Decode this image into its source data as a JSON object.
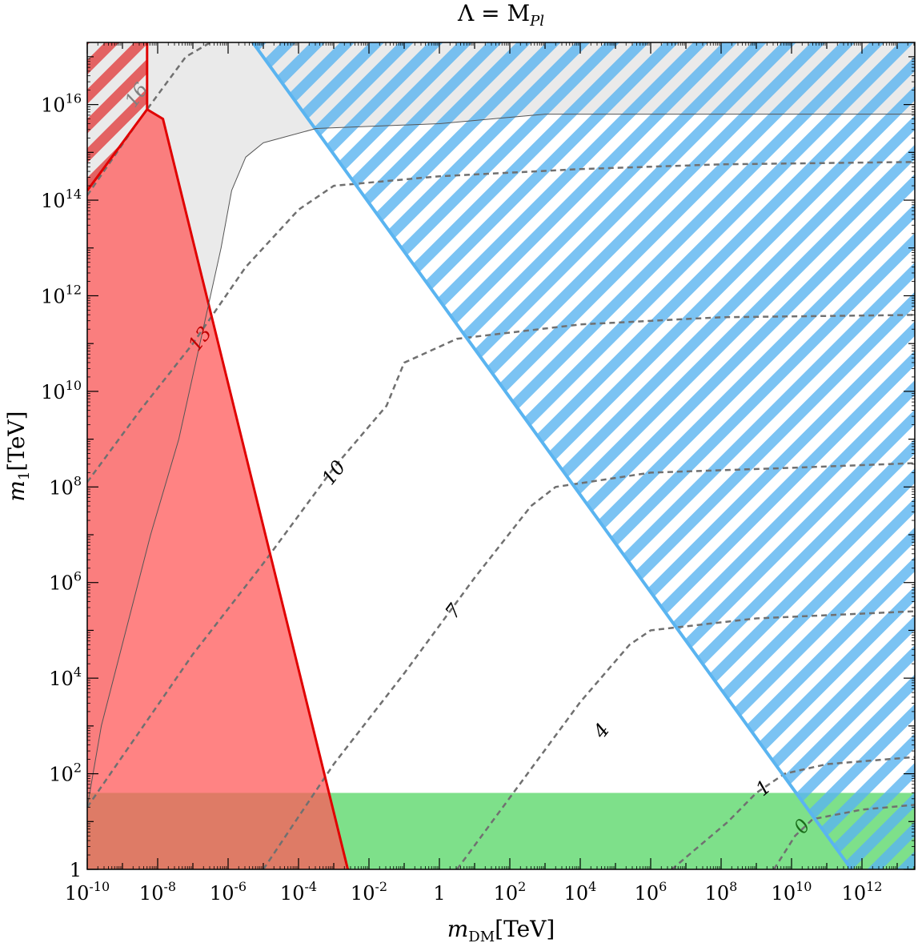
{
  "chart_data": {
    "type": "contour",
    "title": "Λ = M_Pl",
    "title_parts": {
      "lhs": "Λ = M",
      "sub": "Pl"
    },
    "xlabel_parts": {
      "sym": "m",
      "sub": "DM",
      "unit": "[TeV]"
    },
    "ylabel_parts": {
      "sym": "m",
      "sub": "1",
      "unit": "[TeV]"
    },
    "x_scale": "log10",
    "y_scale": "log10",
    "xlim_log10": [
      -10,
      13.5
    ],
    "ylim_log10": [
      0,
      17.3
    ],
    "x_ticks": [
      {
        "base": "10",
        "exp": "-10",
        "v": -10
      },
      {
        "base": "10",
        "exp": "-8",
        "v": -8
      },
      {
        "base": "10",
        "exp": "-6",
        "v": -6
      },
      {
        "base": "10",
        "exp": "-4",
        "v": -4
      },
      {
        "base": "10",
        "exp": "-2",
        "v": -2
      },
      {
        "base": "1",
        "exp": "",
        "v": 0
      },
      {
        "base": "10",
        "exp": "2",
        "v": 2
      },
      {
        "base": "10",
        "exp": "4",
        "v": 4
      },
      {
        "base": "10",
        "exp": "6",
        "v": 6
      },
      {
        "base": "10",
        "exp": "8",
        "v": 8
      },
      {
        "base": "10",
        "exp": "10",
        "v": 10
      },
      {
        "base": "10",
        "exp": "12",
        "v": 12
      }
    ],
    "y_ticks": [
      {
        "base": "1",
        "exp": "",
        "v": 0
      },
      {
        "base": "10",
        "exp": "2",
        "v": 2
      },
      {
        "base": "10",
        "exp": "4",
        "v": 4
      },
      {
        "base": "10",
        "exp": "6",
        "v": 6
      },
      {
        "base": "10",
        "exp": "8",
        "v": 8
      },
      {
        "base": "10",
        "exp": "10",
        "v": 10
      },
      {
        "base": "10",
        "exp": "12",
        "v": 12
      },
      {
        "base": "10",
        "exp": "14",
        "v": 14
      },
      {
        "base": "10",
        "exp": "16",
        "v": 16
      }
    ],
    "regions": [
      {
        "id": "green",
        "fill": "#7ee08a",
        "opacity": 1,
        "points": [
          [
            -10,
            0
          ],
          [
            13.5,
            0
          ],
          [
            13.5,
            1.6
          ],
          [
            -10,
            1.6
          ]
        ]
      },
      {
        "id": "gray",
        "fill": "#d9d9d9",
        "opacity": 0.55,
        "points": [
          [
            -10,
            1.3
          ],
          [
            -9.6,
            3.0
          ],
          [
            -8.9,
            5.0
          ],
          [
            -8.2,
            7.0
          ],
          [
            -7.4,
            9.0
          ],
          [
            -6.8,
            11.0
          ],
          [
            -6.2,
            13.0
          ],
          [
            -5.9,
            14.2
          ],
          [
            -5.5,
            14.9
          ],
          [
            -5.0,
            15.2
          ],
          [
            -3.5,
            15.5
          ],
          [
            0,
            15.6
          ],
          [
            3,
            15.8
          ],
          [
            6,
            15.8
          ],
          [
            13.5,
            15.8
          ],
          [
            13.5,
            17.3
          ],
          [
            -10,
            17.3
          ]
        ]
      },
      {
        "id": "red-hatch-top",
        "fill": "#e24a4a",
        "opacity": 0.85,
        "hatch": true,
        "points": [
          [
            -10,
            14.2
          ],
          [
            -8.3,
            15.9
          ],
          [
            -8.3,
            17.3
          ],
          [
            -10,
            17.3
          ]
        ]
      },
      {
        "id": "red",
        "fill": "#ff5a5a",
        "opacity": 0.75,
        "points": [
          [
            -10,
            0
          ],
          [
            -2.6,
            0
          ],
          [
            -7.85,
            15.7
          ],
          [
            -8.3,
            15.9
          ],
          [
            -10,
            14.2
          ]
        ]
      },
      {
        "id": "blue-hatch",
        "fill": "#5ab4f0",
        "opacity": 0.8,
        "hatch": true,
        "points": [
          [
            -5.3,
            17.3
          ],
          [
            13.5,
            17.3
          ],
          [
            13.5,
            0
          ],
          [
            11.7,
            0
          ]
        ]
      }
    ],
    "boundaries": [
      {
        "id": "red-boundary",
        "color": "#e00000",
        "width": 3,
        "points": [
          [
            -10,
            14.2
          ],
          [
            -8.3,
            15.9
          ],
          [
            -7.85,
            15.7
          ],
          [
            -2.6,
            0
          ]
        ]
      },
      {
        "id": "red-top-edge",
        "color": "#e00000",
        "width": 3,
        "points": [
          [
            -8.3,
            15.9
          ],
          [
            -8.3,
            17.3
          ]
        ]
      },
      {
        "id": "blue-boundary",
        "color": "#5ab4f0",
        "width": 4,
        "points": [
          [
            -5.3,
            17.3
          ],
          [
            11.7,
            0
          ]
        ]
      },
      {
        "id": "gray-boundary",
        "color": "#555555",
        "width": 1,
        "points": [
          [
            -10,
            1.3
          ],
          [
            -9.6,
            3.0
          ],
          [
            -8.9,
            5.0
          ],
          [
            -8.2,
            7.0
          ],
          [
            -7.4,
            9.0
          ],
          [
            -6.8,
            11.0
          ],
          [
            -6.2,
            13.0
          ],
          [
            -5.9,
            14.2
          ],
          [
            -5.5,
            14.9
          ],
          [
            -5.0,
            15.2
          ],
          [
            -3.5,
            15.5
          ],
          [
            0,
            15.6
          ],
          [
            3,
            15.8
          ],
          [
            6,
            15.8
          ],
          [
            13.5,
            15.8
          ]
        ]
      }
    ],
    "contours": [
      {
        "label": "16",
        "label_at": [
          -8.6,
          16.2
        ],
        "label_color": "#808080",
        "points": [
          [
            -10,
            14.1
          ],
          [
            -8.5,
            15.7
          ],
          [
            -7.2,
            17.0
          ],
          [
            -6.5,
            17.3
          ]
        ]
      },
      {
        "label": "13",
        "label_at": [
          -6.8,
          11.1
        ],
        "label_color": "#c00000",
        "points": [
          [
            -10,
            8.1
          ],
          [
            -8.5,
            9.6
          ],
          [
            -7,
            11.0
          ],
          [
            -5.5,
            12.6
          ],
          [
            -4.0,
            13.8
          ],
          [
            -3.0,
            14.3
          ],
          [
            0,
            14.5
          ],
          [
            4,
            14.65
          ],
          [
            8,
            14.75
          ],
          [
            13.5,
            14.8
          ]
        ]
      },
      {
        "label": "10",
        "label_at": [
          -3.0,
          8.3
        ],
        "label_color": "#000000",
        "points": [
          [
            -10,
            1.3
          ],
          [
            -7,
            4.5
          ],
          [
            -5,
            6.4
          ],
          [
            -3,
            8.4
          ],
          [
            -1.5,
            9.7
          ],
          [
            -1,
            10.6
          ],
          [
            0.5,
            11.1
          ],
          [
            4,
            11.4
          ],
          [
            8,
            11.55
          ],
          [
            13.5,
            11.6
          ]
        ]
      },
      {
        "label": "7",
        "label_at": [
          0.4,
          5.4
        ],
        "label_color": "#000000",
        "points": [
          [
            -5,
            0
          ],
          [
            -3,
            2.2
          ],
          [
            -1,
            4.1
          ],
          [
            1,
            6.1
          ],
          [
            2.6,
            7.6
          ],
          [
            3.3,
            8.0
          ],
          [
            6,
            8.3
          ],
          [
            10,
            8.4
          ],
          [
            13.5,
            8.5
          ]
        ]
      },
      {
        "label": "4",
        "label_at": [
          4.6,
          2.9
        ],
        "label_color": "#000000",
        "points": [
          [
            0.5,
            0
          ],
          [
            2.5,
            2.0
          ],
          [
            4,
            3.5
          ],
          [
            5.4,
            4.7
          ],
          [
            6.0,
            5.0
          ],
          [
            9,
            5.25
          ],
          [
            13.5,
            5.4
          ]
        ]
      },
      {
        "label": "1",
        "label_at": [
          9.2,
          1.7
        ],
        "label_color": "#000000",
        "points": [
          [
            6.6,
            0
          ],
          [
            8.2,
            1.0
          ],
          [
            9.0,
            1.6
          ],
          [
            9.8,
            2.0
          ],
          [
            11,
            2.2
          ],
          [
            13.5,
            2.35
          ]
        ]
      },
      {
        "label": "0",
        "label_at": [
          10.3,
          0.9
        ],
        "label_color": "#1b6e1b",
        "points": [
          [
            9.5,
            0
          ],
          [
            10.1,
            0.7
          ],
          [
            10.6,
            1.05
          ],
          [
            12,
            1.25
          ],
          [
            13.5,
            1.35
          ]
        ]
      }
    ]
  }
}
